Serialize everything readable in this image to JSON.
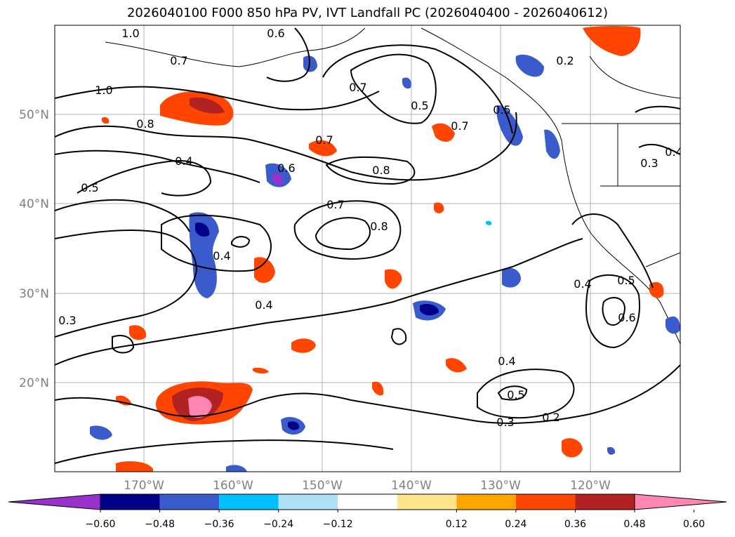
{
  "title": "2026040100 F000 850 hPa PV, IVT Landfall PC (2026040400 - 2026040612)",
  "map": {
    "lon_labels": [
      "170°W",
      "160°W",
      "150°W",
      "140°W",
      "130°W",
      "120°W"
    ],
    "lat_labels": [
      "50°N",
      "40°N",
      "30°N",
      "20°N"
    ],
    "contour_labels": [
      "1.0",
      "0.6",
      "0.7",
      "1.0",
      "0.8",
      "0.4",
      "0.5",
      "0.6",
      "0.7",
      "0.8",
      "0.7",
      "0.8",
      "0.4",
      "0.4",
      "0.3",
      "0.7",
      "0.5",
      "0.7",
      "0.5",
      "0.2",
      "0.3",
      "0.4",
      "0.5",
      "0.4",
      "0.3",
      "0.2",
      "0.4",
      "0.6",
      "0.5"
    ]
  },
  "colorbar": {
    "ticks": [
      "−0.60",
      "−0.48",
      "−0.36",
      "−0.24",
      "−0.12",
      "0.12",
      "0.24",
      "0.36",
      "0.48",
      "0.60"
    ],
    "colors": [
      "#9932cc",
      "#00008b",
      "#3a5bcc",
      "#00bfff",
      "#b0e0f8",
      "#ffffff",
      "#ffe48c",
      "#ffa500",
      "#ff4500",
      "#b22222",
      "#ff86b3",
      "#ff86b3"
    ]
  }
}
